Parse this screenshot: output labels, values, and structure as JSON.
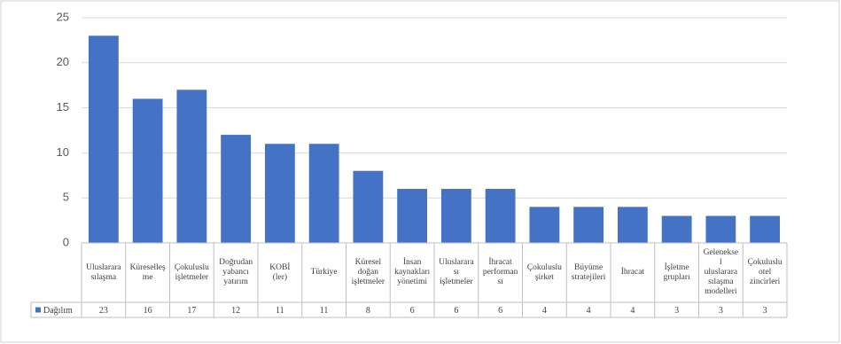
{
  "chart_data": {
    "type": "bar",
    "categories": [
      "Uluslarara\nsılaşma",
      "Küreselleş\nme",
      "Çokuluslu\nişletmeler",
      "Doğrudan\nyabancı\nyatırım",
      "KOBİ\n(ler)",
      "Türkiye",
      "Küresel\ndoğan\nişletmeler",
      "İnsan\nkaynakları\nyönetimi",
      "Uluslarara\nsı\nişletmeler",
      "İhracat\nperforman\nsı",
      "Çokuluslu\nşirket",
      "Büyüme\nstratejileri",
      "İhracat",
      "İşletme\ngrupları",
      "Gelenekse\nl\nuluslarara\nsılaşma\nmodelleri",
      "Çokuluslu\notel\nzincirleri"
    ],
    "series": [
      {
        "name": "Dağılım",
        "color": "#4472c4",
        "values": [
          23,
          16,
          17,
          12,
          11,
          11,
          8,
          6,
          6,
          6,
          4,
          4,
          4,
          3,
          3,
          3
        ]
      }
    ],
    "ylim": [
      0,
      25
    ],
    "yticks": [
      0,
      5,
      10,
      15,
      20,
      25
    ],
    "grid": true
  }
}
